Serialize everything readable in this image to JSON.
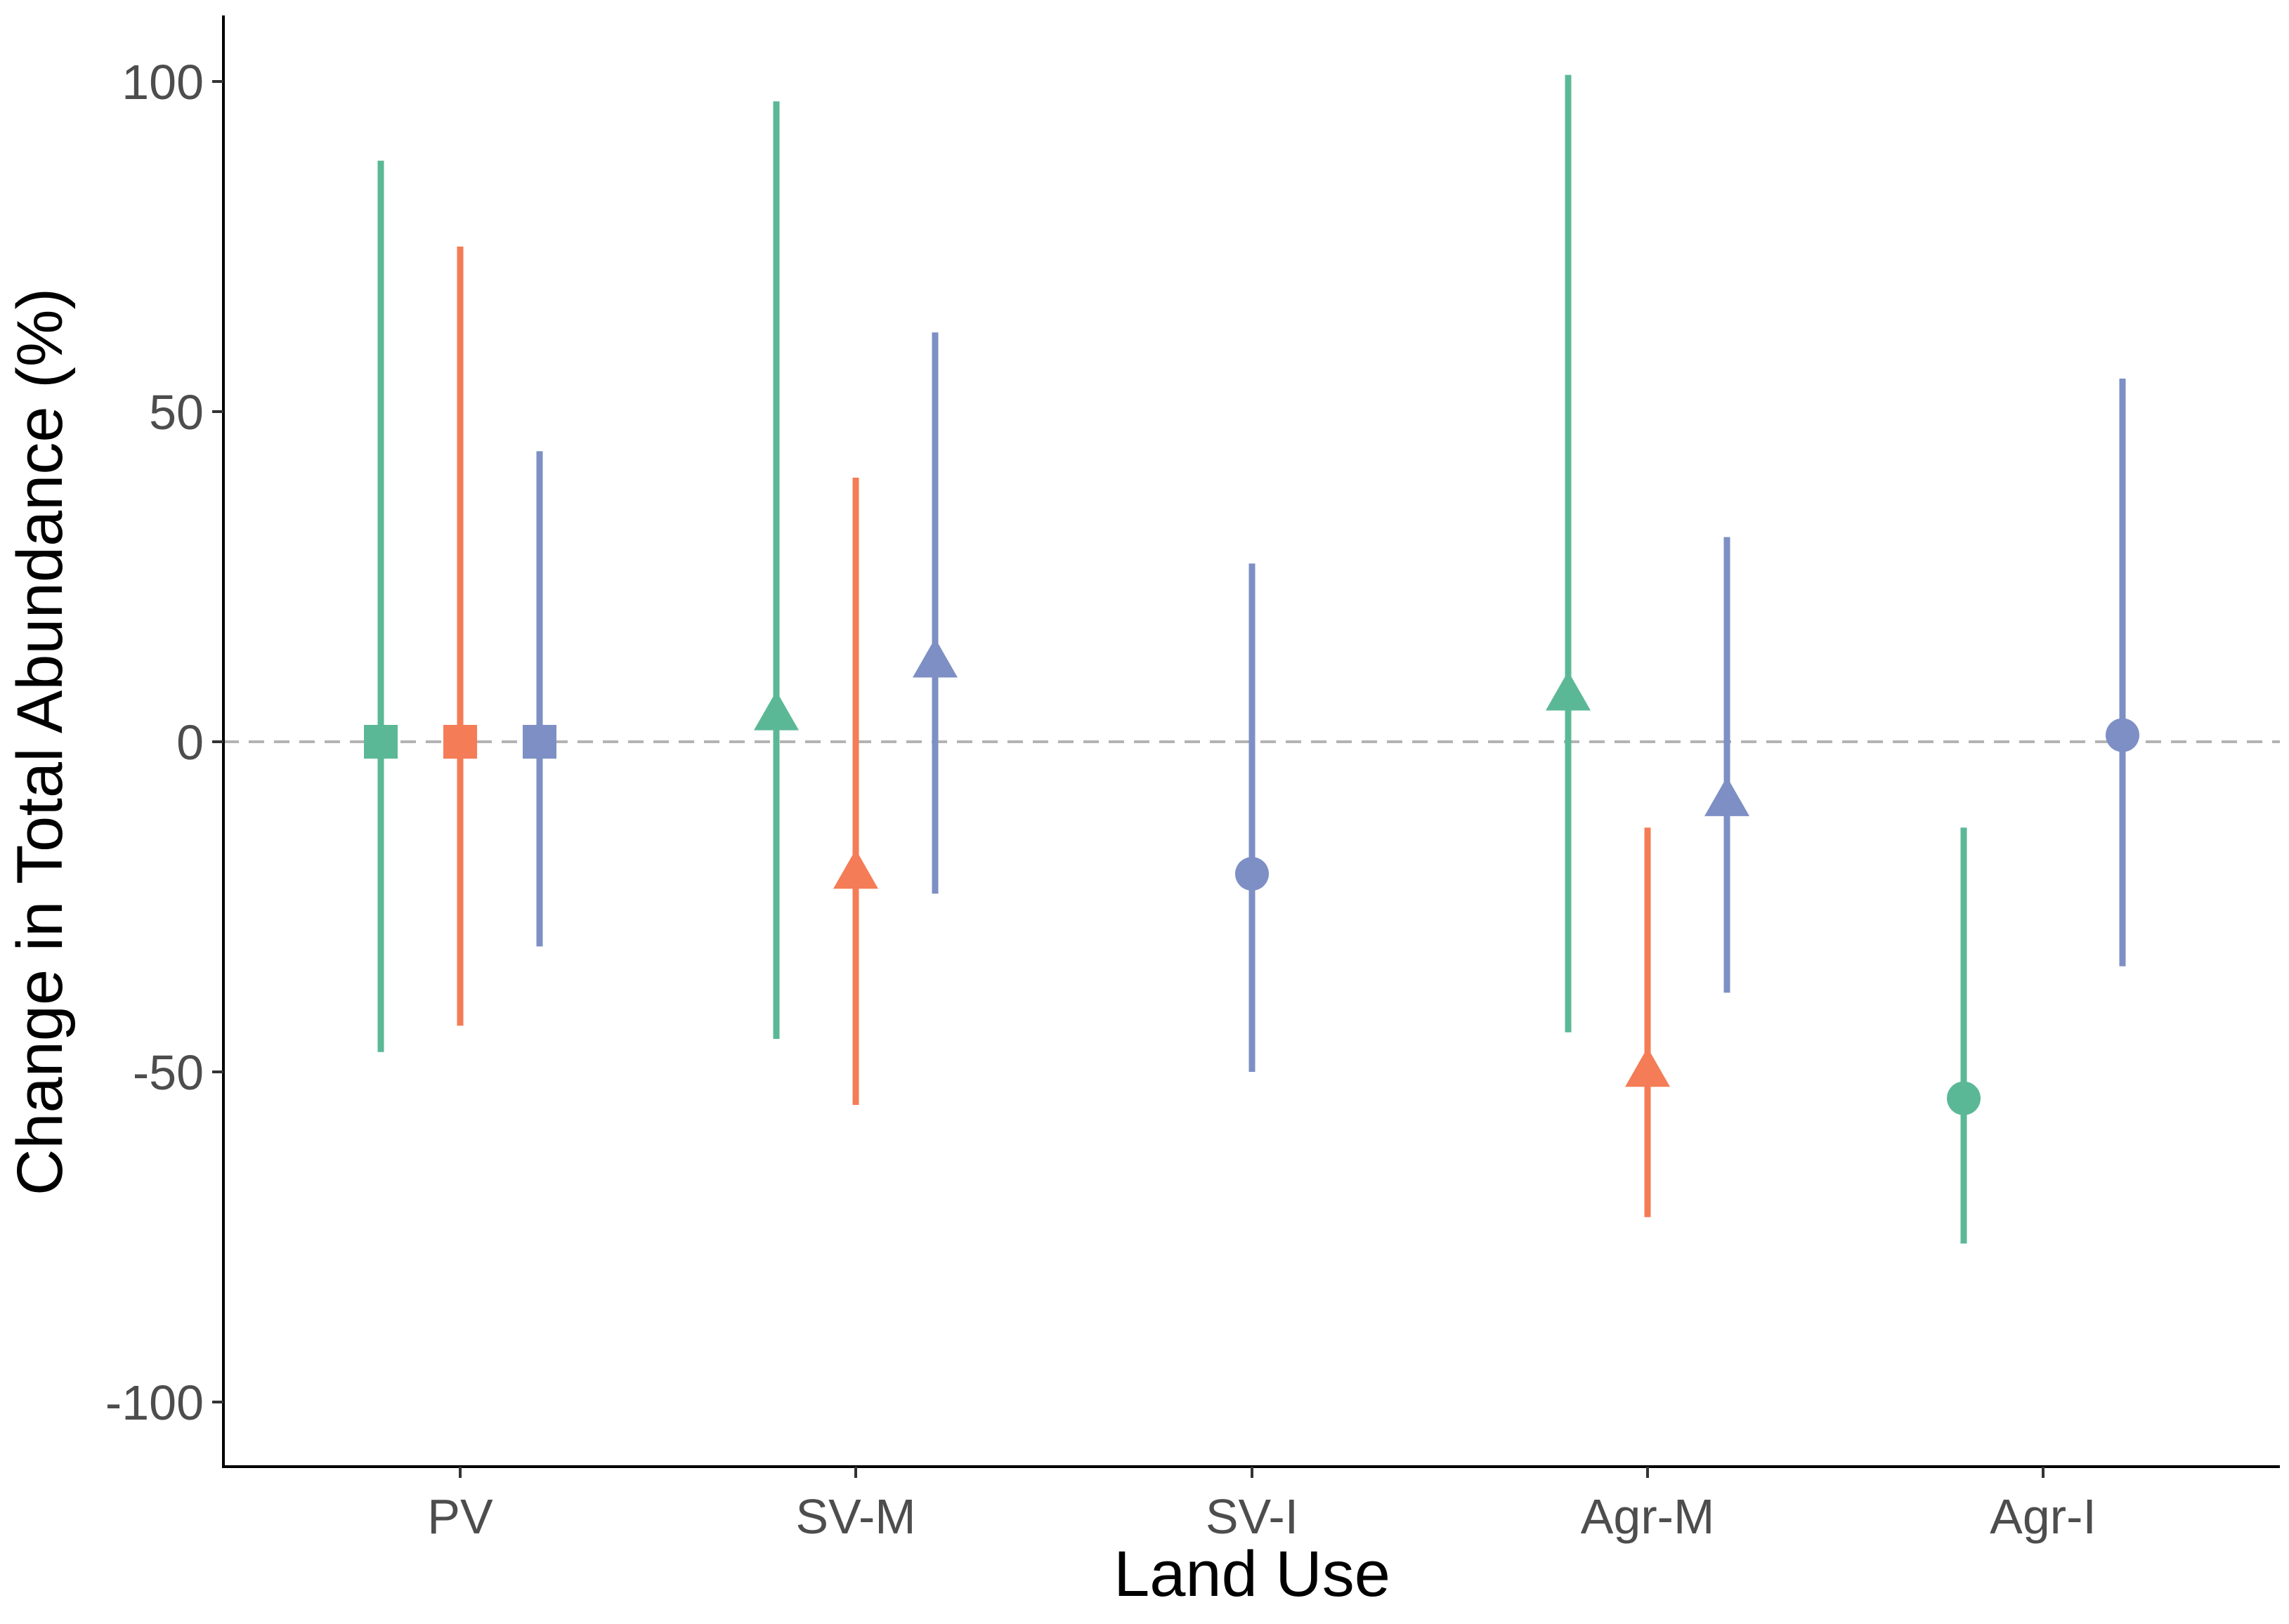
{
  "chart_data": {
    "type": "scatter",
    "subtype": "point-range",
    "title": "",
    "xlabel": "Land Use",
    "ylabel": "Change in Total Abundance (%)",
    "categories": [
      "PV",
      "SV-M",
      "SV-I",
      "Agr-M",
      "Agr-I"
    ],
    "ylim": [
      -110,
      110
    ],
    "yticks": [
      100,
      50,
      0,
      -50,
      -100
    ],
    "ytick_labels": [
      "100",
      "50",
      "0",
      "-50",
      "-100"
    ],
    "reference_line": {
      "y": 0,
      "style": "dashed",
      "color": "#b3b3b3"
    },
    "grid": false,
    "legend": "none",
    "colors": {
      "green": "#5bb896",
      "orange": "#f47c56",
      "blue": "#7d8fc4"
    },
    "points": [
      {
        "category": "PV",
        "offset": -1,
        "color": "green",
        "shape": "square",
        "y": 0,
        "ymin": -47,
        "ymax": 88
      },
      {
        "category": "PV",
        "offset": 0,
        "color": "orange",
        "shape": "square",
        "y": 0,
        "ymin": -43,
        "ymax": 75
      },
      {
        "category": "PV",
        "offset": 1,
        "color": "blue",
        "shape": "square",
        "y": 0,
        "ymin": -31,
        "ymax": 44
      },
      {
        "category": "SV-M",
        "offset": -1,
        "color": "green",
        "shape": "triangle",
        "y": 4,
        "ymin": -45,
        "ymax": 97
      },
      {
        "category": "SV-M",
        "offset": 0,
        "color": "orange",
        "shape": "triangle",
        "y": -20,
        "ymin": -55,
        "ymax": 40
      },
      {
        "category": "SV-M",
        "offset": 1,
        "color": "blue",
        "shape": "triangle",
        "y": 12,
        "ymin": -23,
        "ymax": 62
      },
      {
        "category": "SV-I",
        "offset": 0,
        "color": "blue",
        "shape": "circle",
        "y": -20,
        "ymin": -50,
        "ymax": 27
      },
      {
        "category": "Agr-M",
        "offset": -1,
        "color": "green",
        "shape": "triangle",
        "y": 7,
        "ymin": -44,
        "ymax": 101
      },
      {
        "category": "Agr-M",
        "offset": 0,
        "color": "orange",
        "shape": "triangle",
        "y": -50,
        "ymin": -72,
        "ymax": -13
      },
      {
        "category": "Agr-M",
        "offset": 1,
        "color": "blue",
        "shape": "triangle",
        "y": -9,
        "ymin": -38,
        "ymax": 31
      },
      {
        "category": "Agr-I",
        "offset": -1,
        "color": "green",
        "shape": "circle",
        "y": -54,
        "ymin": -76,
        "ymax": -13
      },
      {
        "category": "Agr-I",
        "offset": 1,
        "color": "blue",
        "shape": "circle",
        "y": 1,
        "ymin": -34,
        "ymax": 55
      }
    ]
  }
}
